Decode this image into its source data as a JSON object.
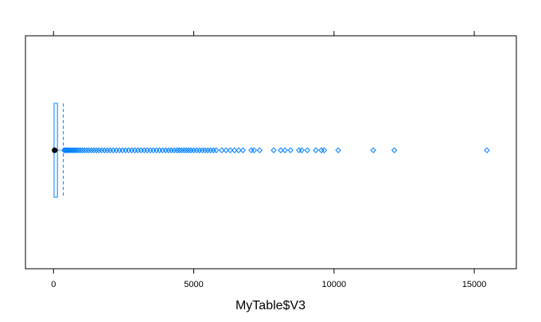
{
  "chart_data": {
    "type": "box",
    "xlabel": "MyTable$V3",
    "xlim": [
      -1000,
      16500
    ],
    "xticks": [
      0,
      5000,
      10000,
      15000
    ],
    "tick_labels": [
      "0",
      "5000",
      "10000",
      "15000"
    ],
    "box": {
      "q1": 20,
      "median": 40,
      "q3": 140,
      "whisker_low": 0,
      "whisker_high": 350
    },
    "outliers": [
      380,
      420,
      460,
      500,
      550,
      600,
      650,
      700,
      760,
      820,
      880,
      950,
      1020,
      1100,
      1180,
      1260,
      1350,
      1440,
      1530,
      1620,
      1720,
      1820,
      1920,
      2020,
      2130,
      2240,
      2350,
      2460,
      2570,
      2680,
      2790,
      2900,
      3010,
      3120,
      3230,
      3340,
      3450,
      3560,
      3670,
      3780,
      3890,
      4000,
      4100,
      4200,
      4300,
      4400,
      4480,
      4560,
      4650,
      4730,
      4820,
      4900,
      5000,
      5100,
      5200,
      5300,
      5400,
      5500,
      5600,
      5700,
      5800,
      6000,
      6150,
      6300,
      6450,
      6600,
      6750,
      7050,
      7150,
      7350,
      7850,
      8100,
      8250,
      8450,
      8750,
      8850,
      9050,
      9350,
      9550,
      9650,
      10150,
      11400,
      12150,
      15450
    ],
    "colors": {
      "box": "#0080ff",
      "median": "#000000",
      "frame": "#000000"
    }
  }
}
